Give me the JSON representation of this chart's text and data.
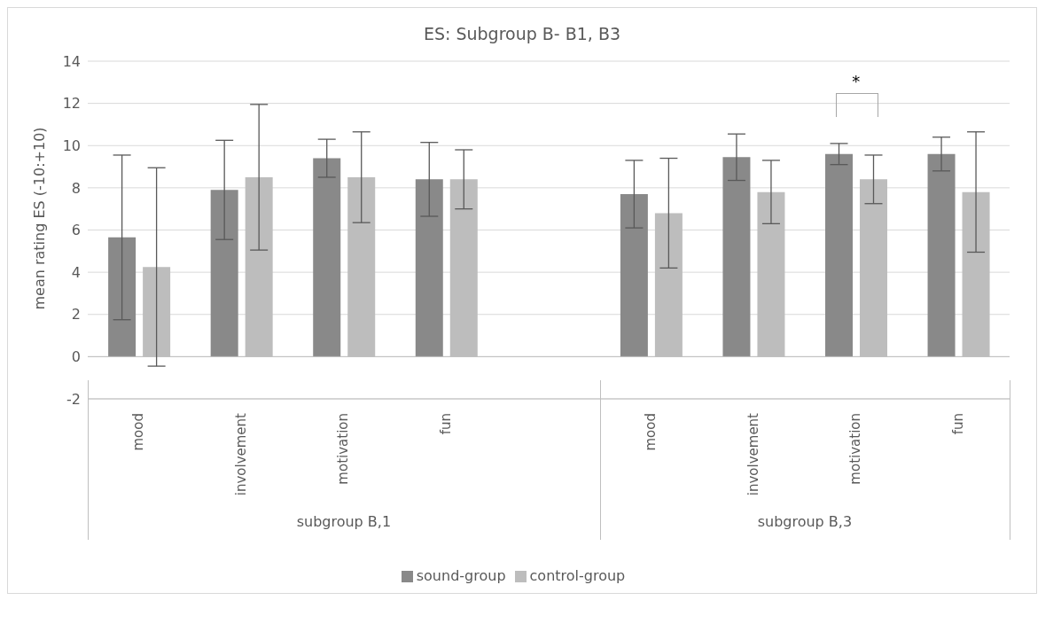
{
  "chart_data": {
    "type": "bar",
    "title": "ES: Subgroup B- B1, B3",
    "ylabel": "mean rating ES (-10:+10)",
    "categories": [
      "mood",
      "involvement",
      "motivation",
      "fun",
      null,
      "mood",
      "involvement",
      "motivation",
      "fun"
    ],
    "series": [
      {
        "name": "sound-group",
        "color": "#898989",
        "values": [
          5.65,
          7.9,
          9.4,
          8.4,
          null,
          7.7,
          9.45,
          9.6,
          9.6
        ],
        "errors": [
          3.9,
          2.35,
          0.9,
          1.75,
          null,
          1.6,
          1.1,
          0.5,
          0.8
        ]
      },
      {
        "name": "control-group",
        "color": "#bdbdbd",
        "values": [
          4.25,
          8.5,
          8.5,
          8.4,
          null,
          6.8,
          7.8,
          8.4,
          7.8
        ],
        "errors": [
          4.7,
          3.45,
          2.15,
          1.4,
          null,
          2.6,
          1.5,
          1.15,
          2.85
        ]
      }
    ],
    "ylim": [
      -2,
      14
    ],
    "yticks": [
      -2,
      0,
      2,
      4,
      6,
      8,
      10,
      12,
      14
    ],
    "grid": "y",
    "legend": "bottom",
    "annotations": [
      "subgroup B,1",
      "subgroup B,3",
      "*"
    ]
  }
}
